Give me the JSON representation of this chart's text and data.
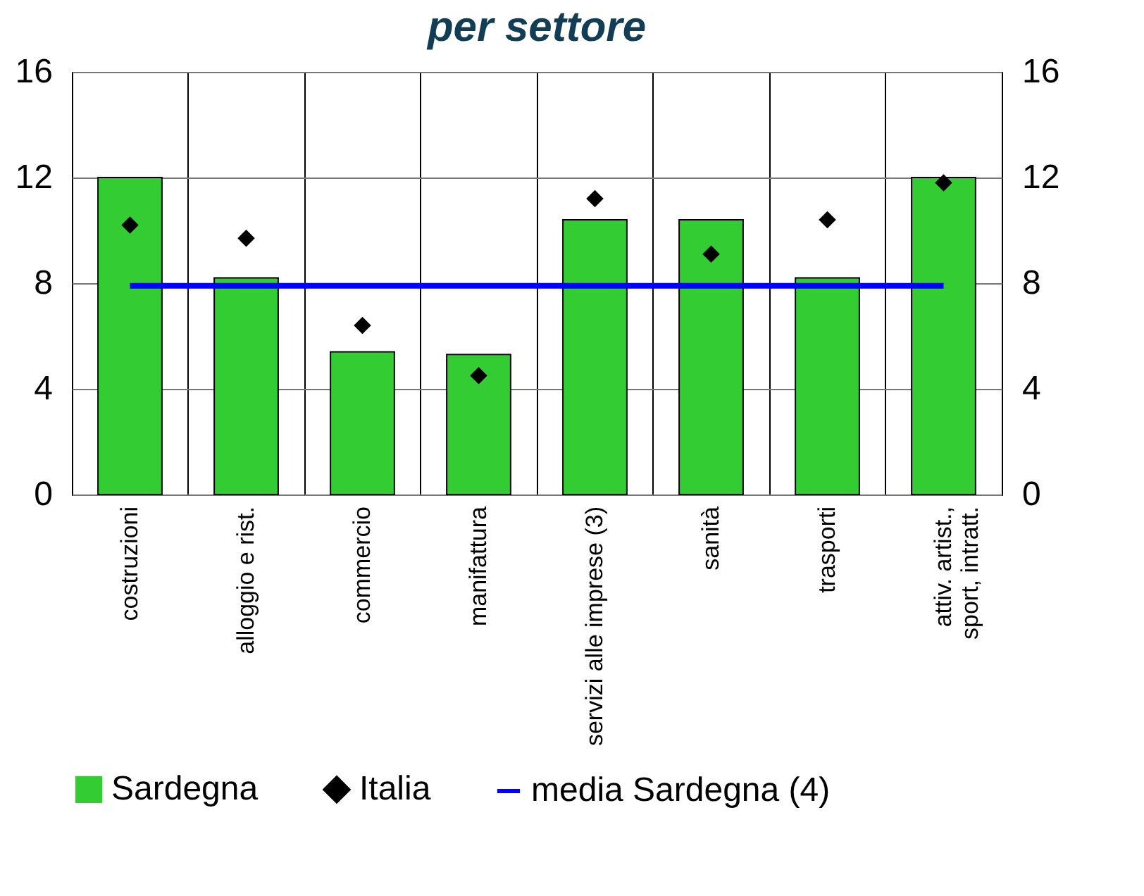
{
  "chart_data": {
    "type": "bar",
    "title": "per settore",
    "categories": [
      "costruzioni",
      "alloggio e rist.",
      "commercio",
      "manifattura",
      "servizi alle imprese (3)",
      "sanità",
      "trasporti",
      "attiv. artist.,\nsport, intratt."
    ],
    "series": [
      {
        "name": "Sardegna",
        "color": "#33cc33",
        "values": [
          12.0,
          8.2,
          5.4,
          5.3,
          10.4,
          10.4,
          8.2,
          12.0
        ]
      },
      {
        "name": "Italia",
        "type": "scatter",
        "marker": "diamond",
        "color": "#000000",
        "values": [
          10.2,
          9.7,
          6.4,
          4.5,
          11.2,
          9.1,
          10.4,
          11.8
        ]
      },
      {
        "name": "media Sardegna (4)",
        "type": "line",
        "color": "#0000ff",
        "values": [
          7.9,
          7.9,
          7.9,
          7.9,
          7.9,
          7.9,
          7.9,
          7.9
        ]
      }
    ],
    "ylim": [
      0,
      16
    ],
    "yticks": [
      0,
      4,
      8,
      12,
      16
    ],
    "y2lim": [
      0,
      16
    ],
    "y2ticks": [
      0,
      4,
      8,
      12,
      16
    ],
    "grid": true,
    "legend": "bottom"
  }
}
